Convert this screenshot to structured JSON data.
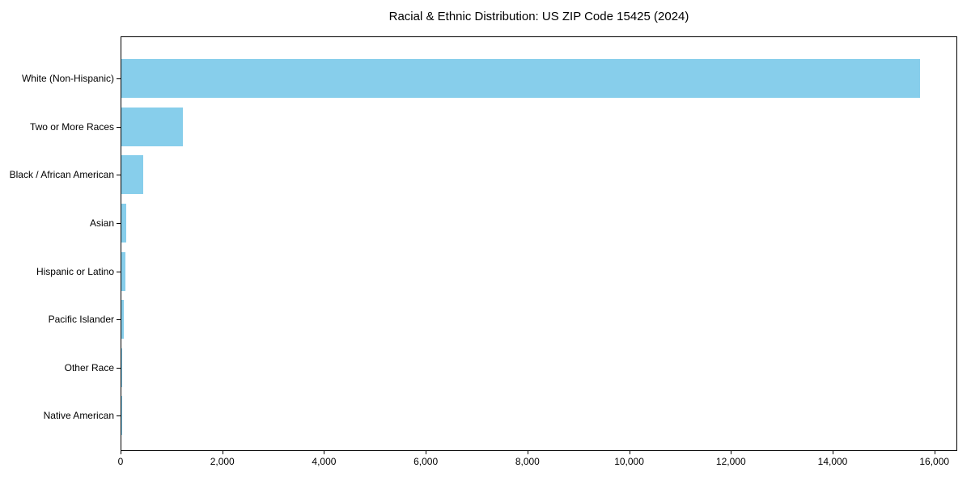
{
  "chart_data": {
    "type": "bar",
    "orientation": "horizontal",
    "title": "Racial & Ethnic Distribution: US ZIP Code 15425 (2024)",
    "categories": [
      "White (Non-Hispanic)",
      "Two or More Races",
      "Black / African American",
      "Asian",
      "Hispanic or Latino",
      "Pacific Islander",
      "Other Race",
      "Native American"
    ],
    "values": [
      15710,
      1213,
      437,
      90,
      75,
      48,
      14,
      3
    ],
    "bar_color": "#87CEEB",
    "xlabel": "",
    "ylabel": "",
    "xlim": [
      0,
      16450
    ],
    "x_ticks": [
      0,
      2000,
      4000,
      6000,
      8000,
      10000,
      12000,
      14000,
      16000
    ],
    "x_tick_labels": [
      "0",
      "2,000",
      "4,000",
      "6,000",
      "8,000",
      "10,000",
      "12,000",
      "14,000",
      "16,000"
    ],
    "grid": false,
    "legend_position": "none"
  }
}
